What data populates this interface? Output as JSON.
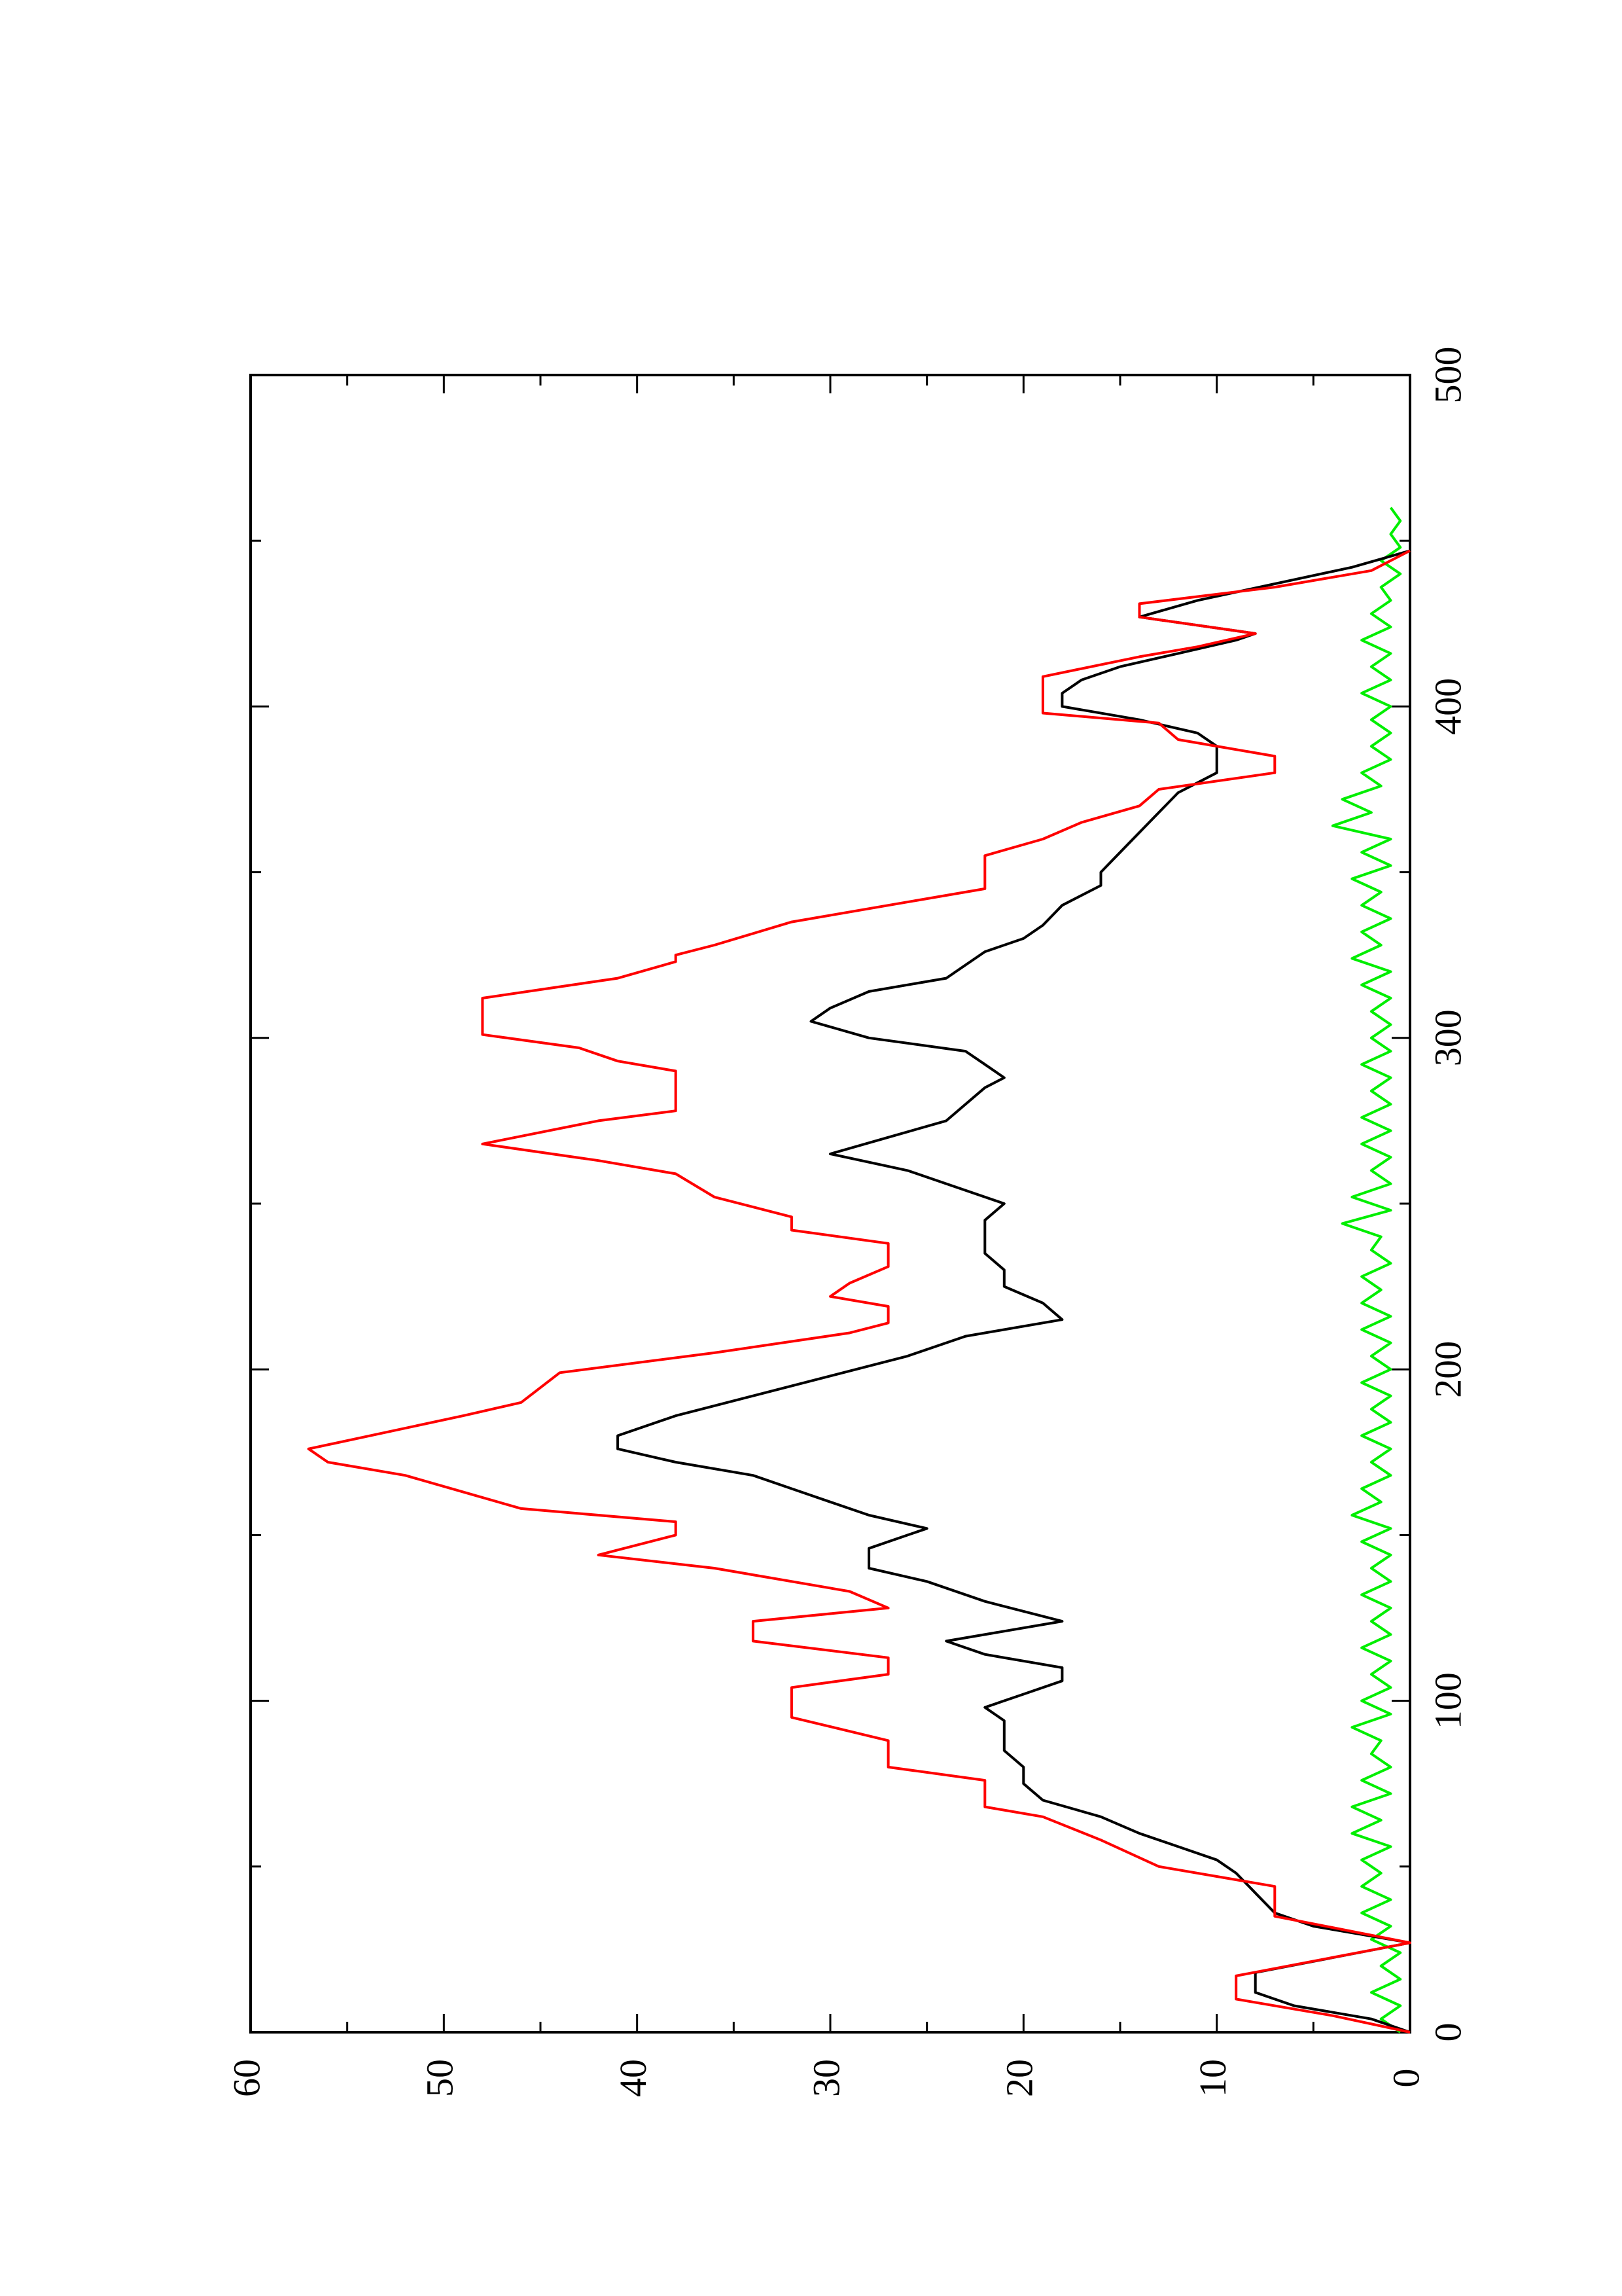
{
  "chart_data": {
    "type": "line",
    "orientation": "rotated-90",
    "title": "",
    "xlabel": "",
    "ylabel": "",
    "xlim": [
      0,
      500
    ],
    "ylim": [
      0,
      60
    ],
    "grid": false,
    "legend": "none",
    "x_ticks": [
      0,
      100,
      200,
      300,
      400,
      500
    ],
    "y_ticks": [
      0,
      10,
      20,
      30,
      40,
      50,
      60
    ],
    "x_tick_labels": [
      "0",
      "100",
      "200",
      "300",
      "400",
      "500"
    ],
    "y_tick_labels": [
      "0",
      "10",
      "20",
      "30",
      "40",
      "50",
      "60"
    ],
    "x_minor_step": 50,
    "y_minor_step": 5,
    "series": [
      {
        "color": "#ff0000",
        "description": "red stepwise zig-zag line",
        "points": [
          [
            0,
            0
          ],
          [
            5,
            4
          ],
          [
            10,
            9
          ],
          [
            17,
            9
          ],
          [
            27,
            0
          ],
          [
            35,
            7
          ],
          [
            44,
            7
          ],
          [
            50,
            13
          ],
          [
            58,
            16
          ],
          [
            65,
            19
          ],
          [
            68,
            22
          ],
          [
            76,
            22
          ],
          [
            80,
            27
          ],
          [
            88,
            27
          ],
          [
            95,
            32
          ],
          [
            104,
            32
          ],
          [
            108,
            27
          ],
          [
            113,
            27
          ],
          [
            118,
            34
          ],
          [
            124,
            34
          ],
          [
            128,
            27
          ],
          [
            133,
            29
          ],
          [
            140,
            36
          ],
          [
            144,
            42
          ],
          [
            150,
            38
          ],
          [
            154,
            38
          ],
          [
            158,
            46
          ],
          [
            163,
            49
          ],
          [
            168,
            52
          ],
          [
            172,
            56
          ],
          [
            176,
            57
          ],
          [
            186,
            49
          ],
          [
            190,
            46
          ],
          [
            199,
            44
          ],
          [
            205,
            36
          ],
          [
            211,
            29
          ],
          [
            214,
            27
          ],
          [
            219,
            27
          ],
          [
            222,
            30
          ],
          [
            226,
            29
          ],
          [
            231,
            27
          ],
          [
            238,
            27
          ],
          [
            242,
            32
          ],
          [
            246,
            32
          ],
          [
            252,
            36
          ],
          [
            259,
            38
          ],
          [
            263,
            42
          ],
          [
            268,
            48
          ],
          [
            275,
            42
          ],
          [
            278,
            38
          ],
          [
            290,
            38
          ],
          [
            293,
            41
          ],
          [
            297,
            43
          ],
          [
            301,
            48
          ],
          [
            312,
            48
          ],
          [
            318,
            41
          ],
          [
            323,
            38
          ],
          [
            325,
            38
          ],
          [
            328,
            36
          ],
          [
            335,
            32
          ],
          [
            340,
            27
          ],
          [
            345,
            22
          ],
          [
            355,
            22
          ],
          [
            360,
            19
          ],
          [
            365,
            17
          ],
          [
            370,
            14
          ],
          [
            375,
            13
          ],
          [
            380,
            7
          ],
          [
            385,
            7
          ],
          [
            390,
            12
          ],
          [
            395,
            13
          ],
          [
            398,
            19
          ],
          [
            409,
            19
          ],
          [
            415,
            14
          ],
          [
            418,
            11
          ],
          [
            422,
            8
          ],
          [
            427,
            14
          ],
          [
            431,
            14
          ],
          [
            436,
            7
          ],
          [
            441,
            2
          ],
          [
            447,
            0
          ]
        ]
      },
      {
        "color": "#000000",
        "description": "black smoothed line",
        "points": [
          [
            0,
            0
          ],
          [
            4,
            2
          ],
          [
            8,
            6
          ],
          [
            12,
            8
          ],
          [
            18,
            8
          ],
          [
            27,
            0
          ],
          [
            32,
            5
          ],
          [
            36,
            7
          ],
          [
            42,
            8
          ],
          [
            48,
            9
          ],
          [
            52,
            10
          ],
          [
            56,
            12
          ],
          [
            60,
            14
          ],
          [
            65,
            16
          ],
          [
            70,
            19
          ],
          [
            75,
            20
          ],
          [
            80,
            20
          ],
          [
            85,
            21
          ],
          [
            90,
            21
          ],
          [
            94,
            21
          ],
          [
            98,
            22
          ],
          [
            102,
            20
          ],
          [
            106,
            18
          ],
          [
            110,
            18
          ],
          [
            114,
            22
          ],
          [
            118,
            24
          ],
          [
            124,
            18
          ],
          [
            130,
            22
          ],
          [
            136,
            25
          ],
          [
            140,
            28
          ],
          [
            146,
            28
          ],
          [
            150,
            26
          ],
          [
            152,
            25
          ],
          [
            156,
            28
          ],
          [
            160,
            30
          ],
          [
            164,
            32
          ],
          [
            168,
            34
          ],
          [
            172,
            38
          ],
          [
            176,
            41
          ],
          [
            180,
            41
          ],
          [
            186,
            38
          ],
          [
            192,
            34
          ],
          [
            198,
            30
          ],
          [
            204,
            26
          ],
          [
            210,
            23
          ],
          [
            215,
            18
          ],
          [
            220,
            19
          ],
          [
            225,
            21
          ],
          [
            230,
            21
          ],
          [
            235,
            22
          ],
          [
            240,
            22
          ],
          [
            245,
            22
          ],
          [
            250,
            21
          ],
          [
            256,
            24
          ],
          [
            260,
            26
          ],
          [
            265,
            30
          ],
          [
            270,
            27
          ],
          [
            275,
            24
          ],
          [
            280,
            23
          ],
          [
            285,
            22
          ],
          [
            288,
            21
          ],
          [
            292,
            22
          ],
          [
            296,
            23
          ],
          [
            300,
            28
          ],
          [
            305,
            31
          ],
          [
            309,
            30
          ],
          [
            314,
            28
          ],
          [
            318,
            24
          ],
          [
            322,
            23
          ],
          [
            326,
            22
          ],
          [
            330,
            20
          ],
          [
            334,
            19
          ],
          [
            340,
            18
          ],
          [
            346,
            16
          ],
          [
            350,
            16
          ],
          [
            356,
            15
          ],
          [
            362,
            14
          ],
          [
            368,
            13
          ],
          [
            374,
            12
          ],
          [
            380,
            10
          ],
          [
            384,
            10
          ],
          [
            388,
            10
          ],
          [
            392,
            11
          ],
          [
            396,
            14
          ],
          [
            400,
            18
          ],
          [
            404,
            18
          ],
          [
            408,
            17
          ],
          [
            412,
            15
          ],
          [
            416,
            12
          ],
          [
            420,
            9
          ],
          [
            422,
            8
          ],
          [
            427,
            14
          ],
          [
            432,
            11
          ],
          [
            437,
            7
          ],
          [
            442,
            3
          ],
          [
            447,
            0
          ]
        ]
      },
      {
        "color": "#00ee00",
        "description": "green noisy line near zero",
        "points": [
          [
            0,
            0.5
          ],
          [
            4,
            1.5
          ],
          [
            8,
            0.5
          ],
          [
            12,
            2.0
          ],
          [
            16,
            0.5
          ],
          [
            20,
            1.5
          ],
          [
            24,
            0.5
          ],
          [
            28,
            2.0
          ],
          [
            32,
            1.0
          ],
          [
            36,
            2.5
          ],
          [
            40,
            1.0
          ],
          [
            44,
            2.5
          ],
          [
            48,
            1.5
          ],
          [
            52,
            2.5
          ],
          [
            56,
            1.0
          ],
          [
            60,
            3.0
          ],
          [
            64,
            1.5
          ],
          [
            68,
            3.0
          ],
          [
            72,
            1.0
          ],
          [
            76,
            2.5
          ],
          [
            80,
            1.0
          ],
          [
            84,
            2.0
          ],
          [
            88,
            1.5
          ],
          [
            92,
            3.0
          ],
          [
            96,
            1.0
          ],
          [
            100,
            2.5
          ],
          [
            104,
            1.0
          ],
          [
            108,
            2.0
          ],
          [
            112,
            1.0
          ],
          [
            116,
            2.5
          ],
          [
            120,
            1.0
          ],
          [
            124,
            2.0
          ],
          [
            128,
            1.0
          ],
          [
            132,
            2.5
          ],
          [
            136,
            1.0
          ],
          [
            140,
            2.0
          ],
          [
            144,
            1.0
          ],
          [
            148,
            2.5
          ],
          [
            152,
            1.0
          ],
          [
            156,
            3.0
          ],
          [
            160,
            1.5
          ],
          [
            164,
            2.5
          ],
          [
            168,
            1.0
          ],
          [
            172,
            2.0
          ],
          [
            176,
            1.0
          ],
          [
            180,
            2.5
          ],
          [
            184,
            1.0
          ],
          [
            188,
            2.0
          ],
          [
            192,
            1.0
          ],
          [
            196,
            2.5
          ],
          [
            200,
            1.0
          ],
          [
            204,
            2.0
          ],
          [
            208,
            1.0
          ],
          [
            212,
            2.5
          ],
          [
            216,
            1.0
          ],
          [
            220,
            2.5
          ],
          [
            224,
            1.5
          ],
          [
            228,
            2.5
          ],
          [
            232,
            1.0
          ],
          [
            236,
            2.0
          ],
          [
            240,
            1.5
          ],
          [
            244,
            3.5
          ],
          [
            248,
            1.0
          ],
          [
            252,
            3.0
          ],
          [
            256,
            1.0
          ],
          [
            260,
            2.0
          ],
          [
            264,
            1.0
          ],
          [
            268,
            2.5
          ],
          [
            272,
            1.0
          ],
          [
            276,
            2.5
          ],
          [
            280,
            1.0
          ],
          [
            284,
            2.0
          ],
          [
            288,
            1.0
          ],
          [
            292,
            2.5
          ],
          [
            296,
            1.0
          ],
          [
            300,
            2.0
          ],
          [
            304,
            1.0
          ],
          [
            308,
            2.0
          ],
          [
            312,
            1.0
          ],
          [
            316,
            2.5
          ],
          [
            320,
            1.0
          ],
          [
            324,
            3.0
          ],
          [
            328,
            1.5
          ],
          [
            332,
            2.5
          ],
          [
            336,
            1.0
          ],
          [
            340,
            2.5
          ],
          [
            344,
            1.5
          ],
          [
            348,
            3.0
          ],
          [
            352,
            1.0
          ],
          [
            356,
            2.5
          ],
          [
            360,
            1.0
          ],
          [
            364,
            4.0
          ],
          [
            368,
            2.0
          ],
          [
            372,
            3.5
          ],
          [
            376,
            1.5
          ],
          [
            380,
            2.5
          ],
          [
            384,
            1.0
          ],
          [
            388,
            2.0
          ],
          [
            392,
            1.0
          ],
          [
            396,
            2.0
          ],
          [
            400,
            1.0
          ],
          [
            404,
            2.5
          ],
          [
            408,
            1.0
          ],
          [
            412,
            2.0
          ],
          [
            416,
            1.0
          ],
          [
            420,
            2.5
          ],
          [
            424,
            1.0
          ],
          [
            428,
            2.0
          ],
          [
            432,
            1.0
          ],
          [
            436,
            1.5
          ],
          [
            440,
            0.5
          ],
          [
            444,
            1.5
          ],
          [
            448,
            0.5
          ],
          [
            452,
            1.0
          ],
          [
            456,
            0.5
          ],
          [
            460,
            1.0
          ]
        ]
      }
    ]
  }
}
